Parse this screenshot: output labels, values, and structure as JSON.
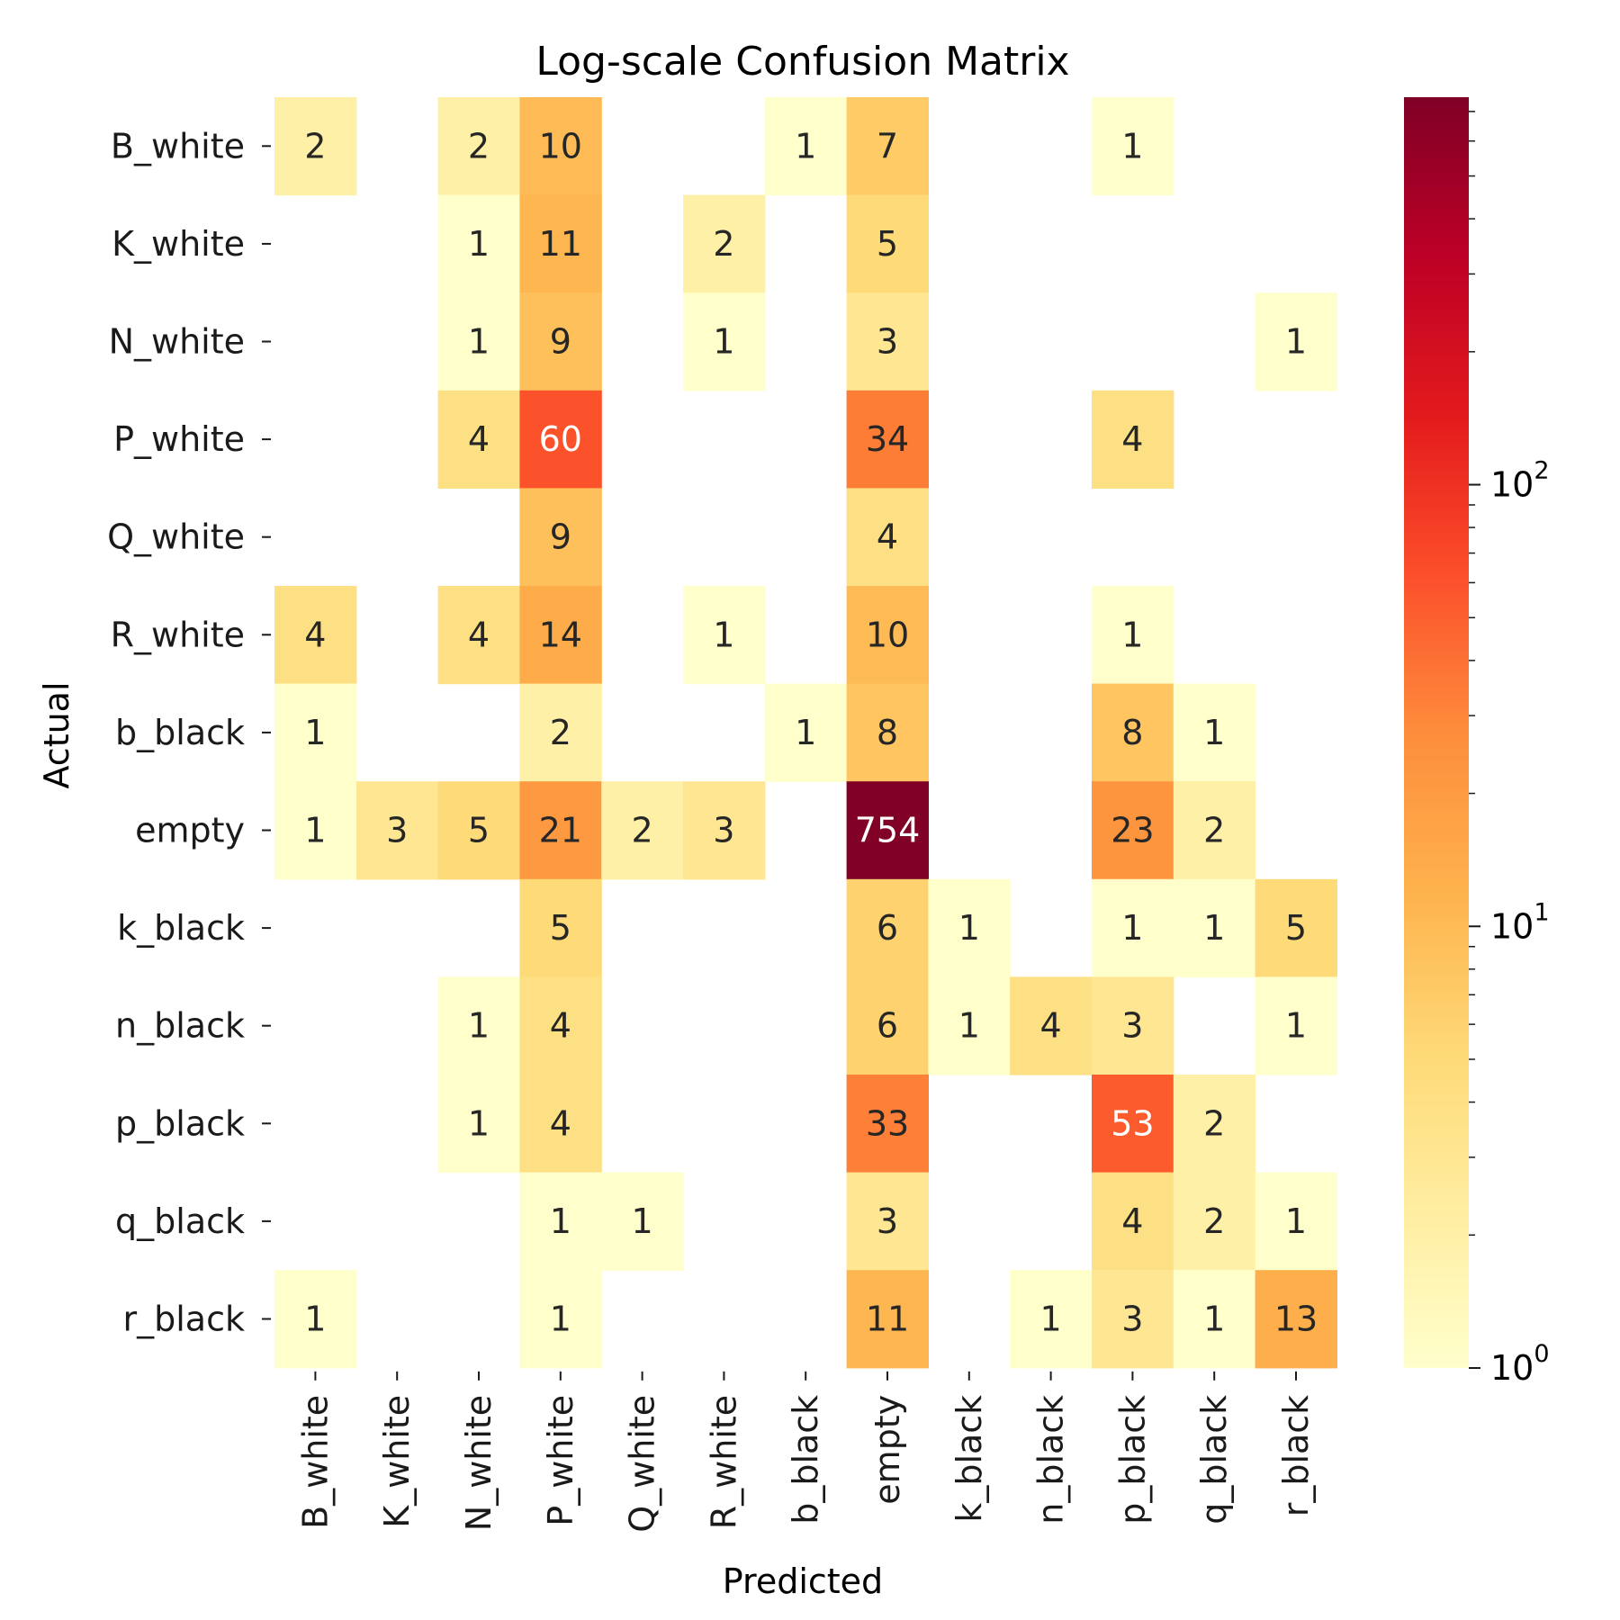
{
  "chart_data": {
    "type": "heatmap",
    "title": "Log-scale Confusion Matrix",
    "xlabel": "Predicted",
    "ylabel": "Actual",
    "x_categories": [
      "B_white",
      "K_white",
      "N_white",
      "P_white",
      "Q_white",
      "R_white",
      "b_black",
      "empty",
      "k_black",
      "n_black",
      "p_black",
      "q_black",
      "r_black"
    ],
    "y_categories": [
      "B_white",
      "K_white",
      "N_white",
      "P_white",
      "Q_white",
      "R_white",
      "b_black",
      "empty",
      "k_black",
      "n_black",
      "p_black",
      "q_black",
      "r_black"
    ],
    "values": [
      [
        2,
        0,
        2,
        10,
        0,
        0,
        1,
        7,
        0,
        0,
        1,
        0,
        0
      ],
      [
        0,
        0,
        1,
        11,
        0,
        2,
        0,
        5,
        0,
        0,
        0,
        0,
        0
      ],
      [
        0,
        0,
        1,
        9,
        0,
        1,
        0,
        3,
        0,
        0,
        0,
        0,
        1
      ],
      [
        0,
        0,
        4,
        60,
        0,
        0,
        0,
        34,
        0,
        0,
        4,
        0,
        0
      ],
      [
        0,
        0,
        0,
        9,
        0,
        0,
        0,
        4,
        0,
        0,
        0,
        0,
        0
      ],
      [
        4,
        0,
        4,
        14,
        0,
        1,
        0,
        10,
        0,
        0,
        1,
        0,
        0
      ],
      [
        1,
        0,
        0,
        2,
        0,
        0,
        1,
        8,
        0,
        0,
        8,
        1,
        0
      ],
      [
        1,
        3,
        5,
        21,
        2,
        3,
        0,
        754,
        0,
        0,
        23,
        2,
        0
      ],
      [
        0,
        0,
        0,
        5,
        0,
        0,
        0,
        6,
        1,
        0,
        1,
        1,
        5
      ],
      [
        0,
        0,
        1,
        4,
        0,
        0,
        0,
        6,
        1,
        4,
        3,
        0,
        1
      ],
      [
        0,
        0,
        1,
        4,
        0,
        0,
        0,
        33,
        0,
        0,
        53,
        2,
        0
      ],
      [
        0,
        0,
        0,
        1,
        1,
        0,
        0,
        3,
        0,
        0,
        4,
        2,
        1
      ],
      [
        1,
        0,
        0,
        1,
        0,
        0,
        0,
        11,
        0,
        1,
        3,
        1,
        13
      ]
    ],
    "scale": "log",
    "colormap": "YlOrRd",
    "vmin": 1,
    "vmax": 754,
    "empty_cells_for_zero": true,
    "colorbar": {
      "ticks": [
        1,
        10,
        100
      ],
      "tick_labels": [
        "10",
        "10",
        "10"
      ],
      "tick_exponents": [
        "0",
        "1",
        "2"
      ]
    }
  }
}
